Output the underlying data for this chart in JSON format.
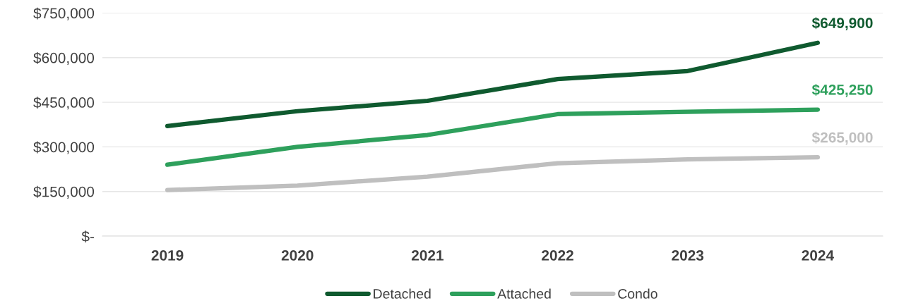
{
  "chart_data": {
    "type": "line",
    "categories": [
      "2019",
      "2020",
      "2021",
      "2022",
      "2023",
      "2024"
    ],
    "series": [
      {
        "name": "Detached",
        "color": "#0f5a2f",
        "values": [
          370000,
          420000,
          455000,
          528000,
          555000,
          649900
        ],
        "value_labels": [
          null,
          null,
          null,
          null,
          null,
          "$649,900"
        ]
      },
      {
        "name": "Attached",
        "color": "#2ea05c",
        "values": [
          240000,
          300000,
          340000,
          410000,
          418000,
          425250
        ],
        "value_labels": [
          null,
          null,
          null,
          null,
          null,
          "$425,250"
        ]
      },
      {
        "name": "Condo",
        "color": "#bfbfbf",
        "values": [
          155000,
          170000,
          200000,
          245000,
          258000,
          265000
        ],
        "value_labels": [
          null,
          null,
          null,
          null,
          null,
          "$265,000"
        ]
      }
    ],
    "ylim": [
      0,
      750000
    ],
    "yticks": [
      {
        "value": 0,
        "label": "$-"
      },
      {
        "value": 150000,
        "label": "$150,000"
      },
      {
        "value": 300000,
        "label": "$300,000"
      },
      {
        "value": 450000,
        "label": "$450,000"
      },
      {
        "value": 600000,
        "label": "$600,000"
      },
      {
        "value": 750000,
        "label": "$750,000"
      }
    ],
    "grid": "y",
    "legend": "bottom",
    "marker": "none",
    "line_style": "solid"
  }
}
